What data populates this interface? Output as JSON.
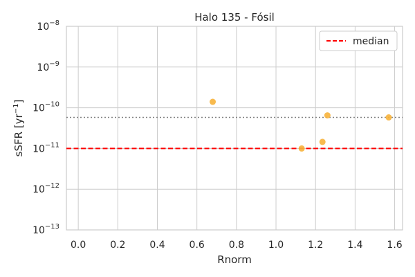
{
  "chart_data": {
    "type": "scatter",
    "title": "Halo 135 - Fósil",
    "xlabel": "Rnorm",
    "ylabel": "sSFR [yr",
    "ylabel_exp": "−1",
    "ylabel_suffix": "]",
    "xlim": [
      -0.06,
      1.64
    ],
    "ylim": [
      1e-13,
      1e-08
    ],
    "yscale": "log",
    "grid": true,
    "x_ticks": [
      0.0,
      0.2,
      0.4,
      0.6,
      0.8,
      1.0,
      1.2,
      1.4,
      1.6
    ],
    "x_tick_labels": [
      "0.0",
      "0.2",
      "0.4",
      "0.6",
      "0.8",
      "1.0",
      "1.2",
      "1.4",
      "1.6"
    ],
    "y_ticks": [
      1e-13,
      1e-12,
      1e-11,
      1e-10,
      1e-09,
      1e-08
    ],
    "y_tick_base": "10",
    "y_tick_exps": [
      "−13",
      "−12",
      "−11",
      "−10",
      "−9",
      "−8"
    ],
    "points": {
      "color": "#f7b23b",
      "x": [
        0.68,
        1.13,
        1.235,
        1.26,
        1.57
      ],
      "y": [
        1.4e-10,
        1e-11,
        1.45e-11,
        6.5e-11,
        5.8e-11
      ]
    },
    "median_line": {
      "y": 1e-11,
      "color": "#ff0000",
      "style": "dashed"
    },
    "reference_line": {
      "y": 5.8e-11,
      "color": "#808080",
      "style": "dotted"
    },
    "legend": {
      "position": "top-right",
      "entries": [
        {
          "label": "median",
          "color": "#ff0000",
          "style": "dashed"
        }
      ]
    }
  }
}
